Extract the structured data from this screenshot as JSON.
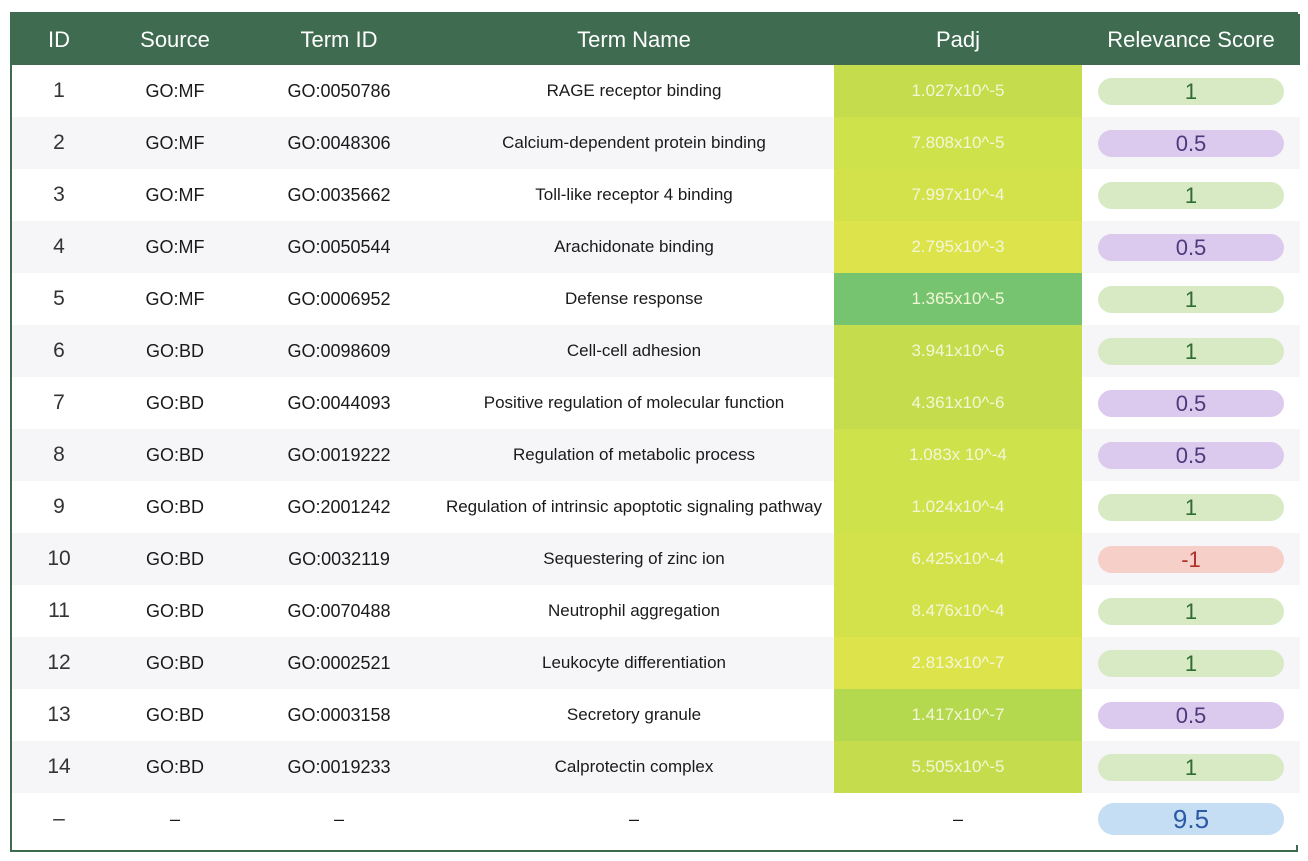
{
  "columns": [
    "ID",
    "Source",
    "Term ID",
    "Term Name",
    "Padj",
    "Relevance Score"
  ],
  "rows": [
    {
      "id": "1",
      "source": "GO:MF",
      "term_id": "GO:0050786",
      "term_name": "RAGE receptor binding",
      "padj": "1.027x10^-5",
      "padj_color": "#c5dc4c",
      "score": "1",
      "score_kind": "p1"
    },
    {
      "id": "2",
      "source": "GO:MF",
      "term_id": "GO:0048306",
      "term_name": "Calcium-dependent protein binding",
      "padj": "7.808x10^-5",
      "padj_color": "#cde24b",
      "score": "0.5",
      "score_kind": "p05"
    },
    {
      "id": "3",
      "source": "GO:MF",
      "term_id": "GO:0035662",
      "term_name": "Toll-like receptor 4 binding",
      "padj": "7.997x10^-4",
      "padj_color": "#d3e24b",
      "score": "1",
      "score_kind": "p1"
    },
    {
      "id": "4",
      "source": "GO:MF",
      "term_id": "GO:0050544",
      "term_name": "Arachidonate binding",
      "padj": "2.795x10^-3",
      "padj_color": "#dde34b",
      "score": "0.5",
      "score_kind": "p05"
    },
    {
      "id": "5",
      "source": "GO:MF",
      "term_id": "GO:0006952",
      "term_name": "Defense response",
      "padj": "1.365x10^-5",
      "padj_color": "#76c46f",
      "score": "1",
      "score_kind": "p1"
    },
    {
      "id": "6",
      "source": "GO:BD",
      "term_id": "GO:0098609",
      "term_name": "Cell-cell adhesion",
      "padj": "3.941x10^-6",
      "padj_color": "#c5dc4c",
      "score": "1",
      "score_kind": "p1"
    },
    {
      "id": "7",
      "source": "GO:BD",
      "term_id": "GO:0044093",
      "term_name": "Positive regulation of molecular function",
      "padj": "4.361x10^-6",
      "padj_color": "#c5dc4c",
      "score": "0.5",
      "score_kind": "p05"
    },
    {
      "id": "8",
      "source": "GO:BD",
      "term_id": "GO:0019222",
      "term_name": "Regulation of metabolic process",
      "padj": "1.083x 10^-4",
      "padj_color": "#cde24b",
      "score": "0.5",
      "score_kind": "p05"
    },
    {
      "id": "9",
      "source": "GO:BD",
      "term_id": "GO:2001242",
      "term_name": "Regulation of intrinsic apoptotic signaling pathway",
      "padj": "1.024x10^-4",
      "padj_color": "#cde24b",
      "score": "1",
      "score_kind": "p1"
    },
    {
      "id": "10",
      "source": "GO:BD",
      "term_id": "GO:0032119",
      "term_name": "Sequestering of zinc ion",
      "padj": "6.425x10^-4",
      "padj_color": "#d3e24b",
      "score": "-1",
      "score_kind": "pneg"
    },
    {
      "id": "11",
      "source": "GO:BD",
      "term_id": "GO:0070488",
      "term_name": "Neutrophil aggregation",
      "padj": "8.476x10^-4",
      "padj_color": "#d3e24b",
      "score": "1",
      "score_kind": "p1"
    },
    {
      "id": "12",
      "source": "GO:BD",
      "term_id": "GO:0002521",
      "term_name": "Leukocyte differentiation",
      "padj": "2.813x10^-7",
      "padj_color": "#dde34b",
      "score": "1",
      "score_kind": "p1"
    },
    {
      "id": "13",
      "source": "GO:BD",
      "term_id": "GO:0003158",
      "term_name": "Secretory granule",
      "padj": "1.417x10^-7",
      "padj_color": "#b4d84e",
      "score": "0.5",
      "score_kind": "p05"
    },
    {
      "id": "14",
      "source": "GO:BD",
      "term_id": "GO:0019233",
      "term_name": "Calprotectin complex",
      "padj": "5.505x10^-5",
      "padj_color": "#c5dc4c",
      "score": "1",
      "score_kind": "p1"
    }
  ],
  "total": {
    "id": "–",
    "source": "–",
    "term_id": "–",
    "term_name": "–",
    "padj": "–",
    "score": "9.5"
  }
}
